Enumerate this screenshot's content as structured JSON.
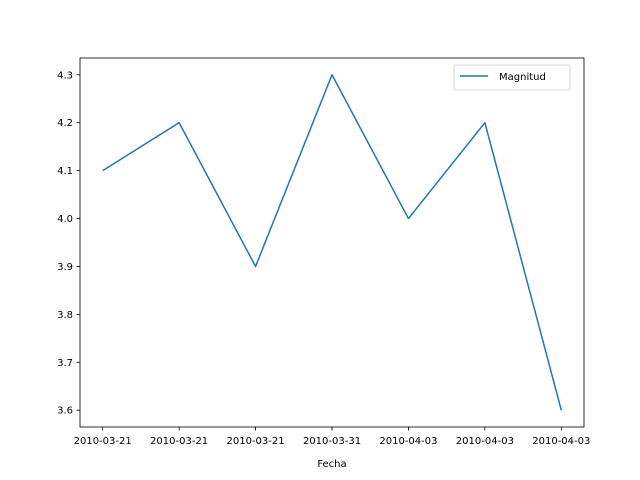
{
  "chart_data": {
    "type": "line",
    "categories": [
      "2010-03-21",
      "2010-03-21",
      "2010-03-21",
      "2010-03-31",
      "2010-04-03",
      "2010-04-03",
      "2010-04-03"
    ],
    "series": [
      {
        "name": "Magnitud",
        "values": [
          4.1,
          4.2,
          3.9,
          4.3,
          4.0,
          4.2,
          3.6
        ],
        "color": "#1f77b4"
      }
    ],
    "xlabel": "Fecha",
    "ylabel": "",
    "ylim": [
      3.565,
      4.335
    ],
    "yticks": [
      3.6,
      3.7,
      3.8,
      3.9,
      4.0,
      4.1,
      4.2,
      4.3
    ],
    "grid": false,
    "legend": "top-right"
  }
}
